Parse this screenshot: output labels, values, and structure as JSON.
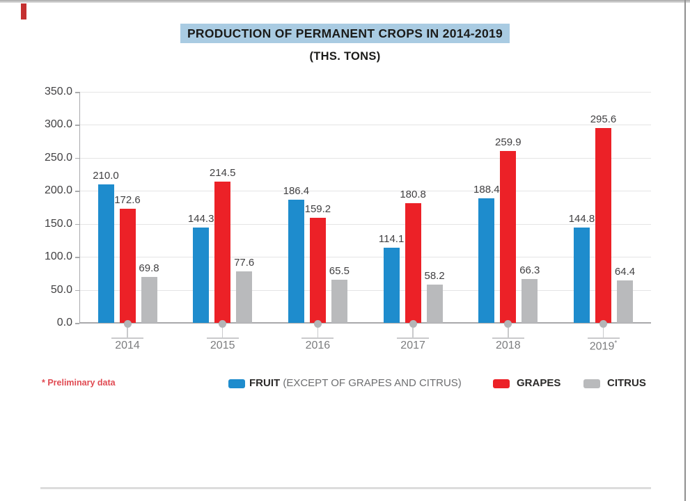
{
  "page": {
    "footnote": "* Preliminary data"
  },
  "chart_data": {
    "type": "bar",
    "title": "PRODUCTION OF PERMANENT CROPS IN 2014-2019",
    "subtitle": "(THS. TONS)",
    "categories": [
      "2014",
      "2015",
      "2016",
      "2017",
      "2018",
      "2019*"
    ],
    "series": [
      {
        "name": "FRUIT (EXCEPT OF GRAPES AND CITRUS)",
        "color": "#1e8ccd",
        "values": [
          210.0,
          144.3,
          186.4,
          114.1,
          188.4,
          144.8
        ]
      },
      {
        "name": "GRAPES",
        "color": "#ec2127",
        "values": [
          172.6,
          214.5,
          159.2,
          180.8,
          259.9,
          295.6
        ]
      },
      {
        "name": "CITRUS",
        "color": "#b9babc",
        "values": [
          69.8,
          77.6,
          65.5,
          58.2,
          66.3,
          64.4
        ]
      }
    ],
    "ylim": [
      0,
      350
    ],
    "ytick_step": 50,
    "ytick_labels": [
      "350.0",
      "300.0",
      "250.0",
      "200.0",
      "150.0",
      "100.0",
      "50.0",
      "0.0"
    ],
    "grid": true,
    "legend_position": "bottom"
  },
  "legend": {
    "items": [
      {
        "name": "FRUIT",
        "detail": "(EXCEPT OF GRAPES AND CITRUS)"
      },
      {
        "name": "GRAPES",
        "detail": ""
      },
      {
        "name": "CITRUS",
        "detail": ""
      }
    ]
  }
}
